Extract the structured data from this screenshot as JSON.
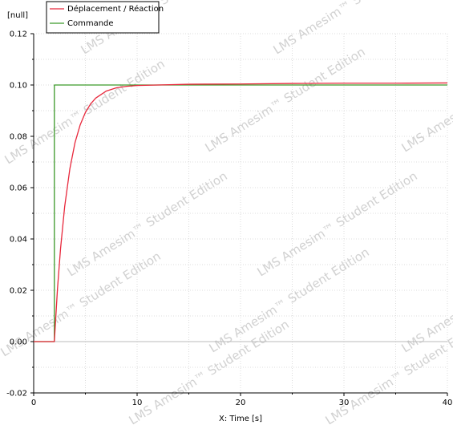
{
  "chart_data": {
    "type": "line",
    "title": "",
    "xlabel": "X: Time [s]",
    "ylabel": "[null]",
    "xlim": [
      0,
      40
    ],
    "ylim": [
      -0.02,
      0.12
    ],
    "x_ticks": [
      0,
      10,
      20,
      30,
      40
    ],
    "y_ticks": [
      -0.02,
      0.0,
      0.02,
      0.04,
      0.06,
      0.08,
      0.1,
      0.12
    ],
    "y_tick_labels": [
      "-0.02",
      "0.00",
      "0.02",
      "0.04",
      "0.06",
      "0.08",
      "0.10",
      "0.12"
    ],
    "grid": true,
    "legend_position": "top-left",
    "series": [
      {
        "name": "Déplacement / Réaction",
        "color": "#e8283c",
        "x": [
          0,
          2,
          2.3,
          2.6,
          3,
          3.5,
          4,
          4.5,
          5,
          5.5,
          6,
          7,
          8,
          9,
          10,
          12,
          15,
          20,
          25,
          30,
          35,
          40
        ],
        "y": [
          0,
          0,
          0.0205,
          0.0363,
          0.0527,
          0.0674,
          0.0776,
          0.0845,
          0.0893,
          0.0926,
          0.0949,
          0.0976,
          0.0989,
          0.0995,
          0.0998,
          0.1,
          0.1003,
          0.1004,
          0.1006,
          0.1007,
          0.1007,
          0.1008
        ]
      },
      {
        "name": "Commande",
        "color": "#3c9a2a",
        "x": [
          0,
          2,
          2,
          40
        ],
        "y": [
          0,
          0,
          0.1,
          0.1
        ]
      }
    ]
  },
  "watermark": {
    "text": "LMS Amesim™ Student Edition",
    "color": "#c9c9c9"
  }
}
